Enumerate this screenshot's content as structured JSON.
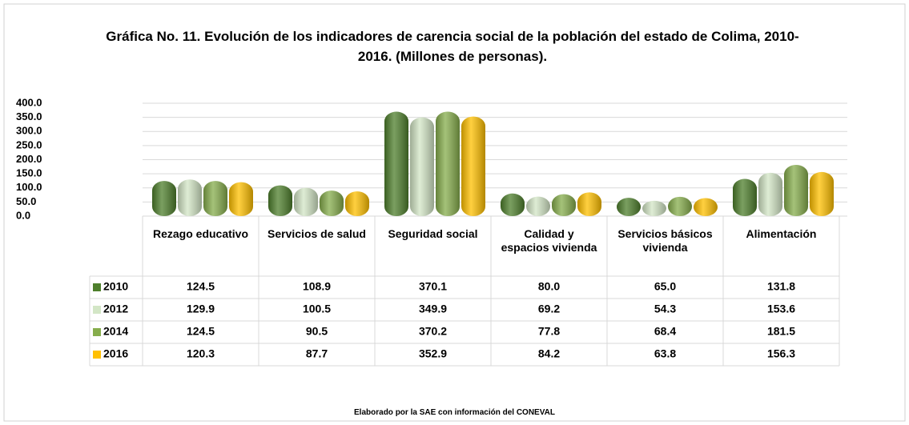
{
  "chart_data": {
    "type": "bar",
    "title": "Gráfica No. 11. Evolución de los indicadores de carencia social de la población del estado de Colima, 2010-2016. (Millones de personas).",
    "categories": [
      "Rezago educativo",
      "Servicios de salud",
      "Seguridad social",
      "Calidad y espacios vivienda",
      "Servicios básicos vivienda",
      "Alimentación"
    ],
    "series": [
      {
        "name": "2010",
        "color": "#4e7f2c",
        "values": [
          124.5,
          108.9,
          370.1,
          80.0,
          65.0,
          131.8
        ],
        "value_labels": [
          "124.5",
          "108.9",
          "370.1",
          "80.0",
          "65.0",
          "131.8"
        ]
      },
      {
        "name": "2012",
        "color": "#d3e6c6",
        "values": [
          129.9,
          100.5,
          349.9,
          69.2,
          54.3,
          153.6
        ],
        "value_labels": [
          "129.9",
          "100.5",
          "349.9",
          "69.2",
          "54.3",
          "153.6"
        ]
      },
      {
        "name": "2014",
        "color": "#86ad4c",
        "values": [
          124.5,
          90.5,
          370.2,
          77.8,
          68.4,
          181.5
        ],
        "value_labels": [
          "124.5",
          "90.5",
          "370.2",
          "77.8",
          "68.4",
          "181.5"
        ]
      },
      {
        "name": "2016",
        "color": "#ffc000",
        "values": [
          120.3,
          87.7,
          352.9,
          84.2,
          63.8,
          156.3
        ],
        "value_labels": [
          "120.3",
          "87.7",
          "352.9",
          "84.2",
          "63.8",
          "156.3"
        ]
      }
    ],
    "ylim": [
      0,
      400
    ],
    "yticks": [
      {
        "value": 0,
        "label": "0.0"
      },
      {
        "value": 50,
        "label": "50.0"
      },
      {
        "value": 100,
        "label": "100.0"
      },
      {
        "value": 150,
        "label": "150.0"
      },
      {
        "value": 200,
        "label": "200.0"
      },
      {
        "value": 250,
        "label": "250.0"
      },
      {
        "value": 300,
        "label": "300.0"
      },
      {
        "value": 350,
        "label": "350.0"
      },
      {
        "value": 400,
        "label": "400.0"
      }
    ],
    "grid": true,
    "note": "Elaborado por la SAE con información del CONEVAL"
  }
}
